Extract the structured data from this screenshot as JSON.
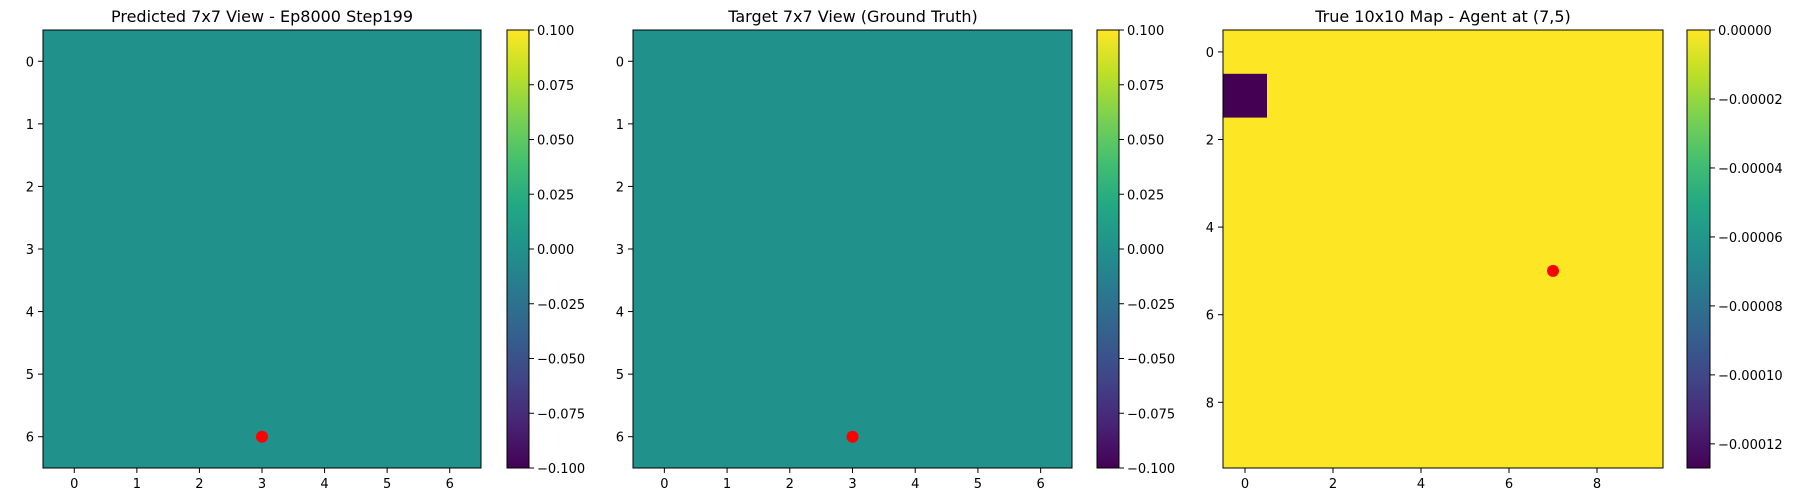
{
  "chart_data": [
    {
      "type": "heatmap",
      "title": "Predicted 7x7 View - Ep8000 Step199",
      "grid_size": [
        7,
        7
      ],
      "fill_value": 0.0,
      "cell_color": "#21918c",
      "x_ticks": [
        0,
        1,
        2,
        3,
        4,
        5,
        6
      ],
      "y_ticks": [
        0,
        1,
        2,
        3,
        4,
        5,
        6
      ],
      "agent": {
        "x": 3,
        "y": 6,
        "color": "#ff0000"
      },
      "colorbar": {
        "min": -0.1,
        "max": 0.1,
        "ticks": [
          -0.1,
          -0.075,
          -0.05,
          -0.025,
          0.0,
          0.025,
          0.05,
          0.075,
          0.1
        ],
        "tick_labels": [
          "−0.100",
          "−0.075",
          "−0.050",
          "−0.025",
          "0.000",
          "0.025",
          "0.050",
          "0.075",
          "0.100"
        ]
      }
    },
    {
      "type": "heatmap",
      "title": "Target 7x7 View (Ground Truth)",
      "grid_size": [
        7,
        7
      ],
      "fill_value": 0.0,
      "cell_color": "#21918c",
      "x_ticks": [
        0,
        1,
        2,
        3,
        4,
        5,
        6
      ],
      "y_ticks": [
        0,
        1,
        2,
        3,
        4,
        5,
        6
      ],
      "agent": {
        "x": 3,
        "y": 6,
        "color": "#ff0000"
      },
      "colorbar": {
        "min": -0.1,
        "max": 0.1,
        "ticks": [
          -0.1,
          -0.075,
          -0.05,
          -0.025,
          0.0,
          0.025,
          0.05,
          0.075,
          0.1
        ],
        "tick_labels": [
          "−0.100",
          "−0.075",
          "−0.050",
          "−0.025",
          "0.000",
          "0.025",
          "0.050",
          "0.075",
          "0.100"
        ]
      }
    },
    {
      "type": "heatmap",
      "title": "True 10x10 Map - Agent at (7,5)",
      "grid_size": [
        10,
        10
      ],
      "fill_value": 0.0,
      "cell_color": "#fde725",
      "special_cells": [
        {
          "x": 0,
          "y": 1,
          "value": -0.000126,
          "color": "#440154"
        }
      ],
      "x_ticks": [
        0,
        2,
        4,
        6,
        8
      ],
      "y_ticks": [
        0,
        2,
        4,
        6,
        8
      ],
      "agent": {
        "x": 7,
        "y": 5,
        "color": "#ff0000"
      },
      "colorbar": {
        "min": -0.000127,
        "max": 0.0,
        "ticks": [
          -0.00012,
          -0.0001,
          -8e-05,
          -6e-05,
          -4e-05,
          -2e-05,
          0.0
        ],
        "tick_labels": [
          "−0.00012",
          "−0.00010",
          "−0.00008",
          "−0.00006",
          "−0.00004",
          "−0.00002",
          "0.00000"
        ]
      }
    }
  ]
}
